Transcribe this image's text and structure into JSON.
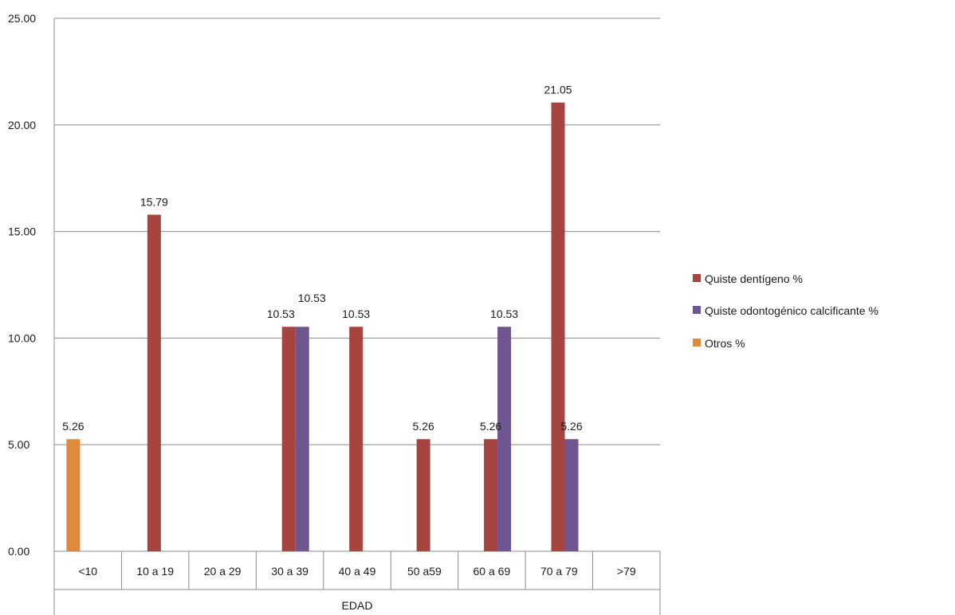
{
  "chart_data": {
    "type": "bar",
    "title": "",
    "xlabel": "EDAD",
    "ylabel": "",
    "ylim": [
      0,
      25
    ],
    "y_ticks": [
      "0.00",
      "5.00",
      "10.00",
      "15.00",
      "20.00",
      "25.00"
    ],
    "grid": "horizontal",
    "legend_position": "right",
    "categories": [
      "<10",
      "10 a 19",
      "20 a 29",
      "30 a 39",
      "40 a 49",
      "50 a59",
      "60 a 69",
      "70 a 79",
      ">79"
    ],
    "series": [
      {
        "name": "Quiste dentígeno %",
        "color": "#a64440",
        "values": [
          null,
          15.79,
          null,
          10.53,
          10.53,
          5.26,
          5.26,
          21.05,
          null
        ],
        "labels": [
          "",
          "15.79",
          "",
          "10.53",
          "10.53",
          "5.26",
          "5.26",
          "21.05",
          ""
        ]
      },
      {
        "name": "Quiste odontogénico calcificante %",
        "color": "#6f5690",
        "values": [
          null,
          null,
          null,
          10.53,
          null,
          null,
          10.53,
          5.26,
          null
        ],
        "labels": [
          "",
          "",
          "",
          "10.53",
          "",
          "",
          "10.53",
          "5.26",
          ""
        ]
      },
      {
        "name": "Otros %",
        "color": "#e08a3c",
        "values": [
          5.26,
          null,
          null,
          null,
          null,
          null,
          null,
          null,
          null
        ],
        "labels": [
          "5.26",
          "",
          "",
          "",
          "",
          "",
          "",
          "",
          ""
        ]
      }
    ]
  }
}
